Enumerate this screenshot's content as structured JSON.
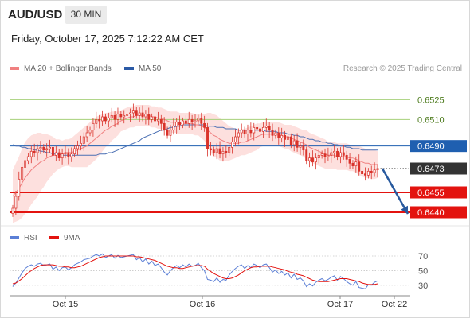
{
  "header": {
    "symbol": "AUD/USD",
    "timeframe": "30 MIN",
    "datetime": "Friday, October 17, 2025 7:12:22 AM CET"
  },
  "legend": {
    "ma20_label": "MA 20 + Bollinger Bands",
    "ma50_label": "MA 50",
    "rsi_label": "RSI",
    "ma9_label": "9MA",
    "copyright": "Research © 2025 Trading Central"
  },
  "colors": {
    "candle": "#d9322a",
    "ma20": "#f08080",
    "band": "#fcd8d6",
    "ma50": "#4a6fb3",
    "resistance": "#a6d07a",
    "support": "#e3130f",
    "pivot": "#1f5fb0",
    "current": "#333333",
    "rsi": "#5b7fd6",
    "rsi_ma": "#e3130f",
    "arrow": "#27599e"
  },
  "chart_data": [
    {
      "type": "candlestick",
      "title": "AUD/USD",
      "x_tick_labels": [
        "Oct 15",
        "Oct 16",
        "Oct 17",
        "Oct 22"
      ],
      "ylim": [
        0.6437,
        0.6542
      ],
      "levels": [
        {
          "value": "0.6525",
          "kind": "resistance"
        },
        {
          "value": "0.6510",
          "kind": "resistance"
        },
        {
          "value": "0.6490",
          "kind": "pivot"
        },
        {
          "value": "0.6473",
          "kind": "current"
        },
        {
          "value": "0.6455",
          "kind": "support"
        },
        {
          "value": "0.6440",
          "kind": "support"
        }
      ],
      "series": [
        {
          "name": "MA 20 + Bollinger Bands",
          "style": "line"
        },
        {
          "name": "MA 50",
          "style": "line"
        }
      ],
      "close": [
        0.6443,
        0.6452,
        0.6465,
        0.6474,
        0.6479,
        0.6482,
        0.6486,
        0.6485,
        0.6488,
        0.6489,
        0.6487,
        0.6488,
        0.6489,
        0.6483,
        0.6485,
        0.6481,
        0.6484,
        0.6485,
        0.6482,
        0.6484,
        0.6488,
        0.649,
        0.6492,
        0.6497,
        0.65,
        0.6502,
        0.6507,
        0.651,
        0.6509,
        0.6512,
        0.6509,
        0.6511,
        0.6513,
        0.651,
        0.6514,
        0.6512,
        0.6513,
        0.6514,
        0.6515,
        0.6517,
        0.6513,
        0.6515,
        0.6512,
        0.6514,
        0.651,
        0.6512,
        0.6509,
        0.651,
        0.6507,
        0.6502,
        0.6498,
        0.6502,
        0.6505,
        0.6508,
        0.6506,
        0.6509,
        0.6507,
        0.651,
        0.6508,
        0.6509,
        0.6511,
        0.6507,
        0.6504,
        0.6488,
        0.6487,
        0.6485,
        0.6488,
        0.6484,
        0.6486,
        0.6485,
        0.6489,
        0.6493,
        0.6497,
        0.65,
        0.6502,
        0.6499,
        0.6502,
        0.65,
        0.6504,
        0.6503,
        0.6501,
        0.6504,
        0.6505,
        0.6502,
        0.6498,
        0.65,
        0.6496,
        0.6498,
        0.6495,
        0.6497,
        0.6491,
        0.6494,
        0.6489,
        0.649,
        0.6487,
        0.6479,
        0.6481,
        0.6478,
        0.6481,
        0.6483,
        0.6484,
        0.6482,
        0.6483,
        0.6485,
        0.6486,
        0.6482,
        0.6485,
        0.6483,
        0.648,
        0.6477,
        0.6475,
        0.6478,
        0.6471,
        0.6469,
        0.6468,
        0.6471,
        0.647,
        0.6472,
        0.6473
      ],
      "ma20": [
        0.6452,
        0.6455,
        0.6458,
        0.6462,
        0.6466,
        0.6469,
        0.6472,
        0.6474,
        0.6476,
        0.6478,
        0.6479,
        0.6481,
        0.6482,
        0.6483,
        0.6483,
        0.6484,
        0.6484,
        0.6485,
        0.6485,
        0.6485,
        0.6486,
        0.6487,
        0.6488,
        0.6489,
        0.649,
        0.6492,
        0.6494,
        0.6496,
        0.6498,
        0.65,
        0.6502,
        0.6503,
        0.6505,
        0.6506,
        0.6507,
        0.6509,
        0.651,
        0.6511,
        0.6512,
        0.6512,
        0.6513,
        0.6513,
        0.6513,
        0.6513,
        0.6513,
        0.6512,
        0.6512,
        0.6511,
        0.6511,
        0.651,
        0.6509,
        0.6508,
        0.6508,
        0.6508,
        0.6507,
        0.6507,
        0.6507,
        0.6507,
        0.6507,
        0.6506,
        0.6506,
        0.6505,
        0.6504,
        0.6502,
        0.65,
        0.6498,
        0.6497,
        0.6495,
        0.6494,
        0.6493,
        0.6492,
        0.6492,
        0.6492,
        0.6492,
        0.6493,
        0.6493,
        0.6494,
        0.6495,
        0.6496,
        0.6497,
        0.6498,
        0.6499,
        0.6499,
        0.6499,
        0.6499,
        0.6499,
        0.6499,
        0.6498,
        0.6497,
        0.6497,
        0.6496,
        0.6495,
        0.6494,
        0.6493,
        0.6492,
        0.6491,
        0.6489,
        0.6488,
        0.6487,
        0.6486,
        0.6485,
        0.6484,
        0.6483,
        0.6483,
        0.6483,
        0.6482,
        0.6482,
        0.6482,
        0.6482,
        0.6481,
        0.6481,
        0.648,
        0.6479,
        0.6478,
        0.6477,
        0.6477,
        0.6476,
        0.6476,
        0.6476
      ],
      "bb_width": [
        0.002,
        0.0022,
        0.0024,
        0.0026,
        0.0027,
        0.0027,
        0.0026,
        0.0025,
        0.0024,
        0.0022,
        0.002,
        0.0018,
        0.0016,
        0.0014,
        0.0012,
        0.0011,
        0.001,
        0.001,
        0.001,
        0.0011,
        0.0012,
        0.0013,
        0.0014,
        0.0015,
        0.0016,
        0.0016,
        0.0016,
        0.0016,
        0.0015,
        0.0014,
        0.0013,
        0.0012,
        0.0011,
        0.001,
        0.0009,
        0.0008,
        0.0008,
        0.0008,
        0.0008,
        0.0008,
        0.0008,
        0.0008,
        0.0008,
        0.0008,
        0.0008,
        0.0008,
        0.0008,
        0.0008,
        0.0008,
        0.0008,
        0.0008,
        0.0008,
        0.0008,
        0.0008,
        0.0008,
        0.0008,
        0.0008,
        0.0008,
        0.0008,
        0.0008,
        0.0008,
        0.0009,
        0.001,
        0.0013,
        0.0015,
        0.0016,
        0.0016,
        0.0016,
        0.0015,
        0.0014,
        0.0013,
        0.0012,
        0.0011,
        0.001,
        0.001,
        0.001,
        0.001,
        0.001,
        0.001,
        0.001,
        0.0009,
        0.0009,
        0.0009,
        0.0009,
        0.0009,
        0.0009,
        0.0009,
        0.0009,
        0.0009,
        0.0009,
        0.001,
        0.001,
        0.001,
        0.001,
        0.001,
        0.0011,
        0.0011,
        0.0011,
        0.0011,
        0.0011,
        0.0011,
        0.0011,
        0.001,
        0.001,
        0.001,
        0.001,
        0.001,
        0.001,
        0.001,
        0.001,
        0.001,
        0.001,
        0.0011,
        0.0011,
        0.0011,
        0.0011,
        0.0011,
        0.0011,
        0.001
      ],
      "ma50": [
        0.6491,
        0.649,
        0.649,
        0.6489,
        0.6489,
        0.6488,
        0.6488,
        0.6487,
        0.6487,
        0.6486,
        0.6486,
        0.6485,
        0.6485,
        0.6484,
        0.6484,
        0.6484,
        0.6483,
        0.6483,
        0.6483,
        0.6483,
        0.6483,
        0.6483,
        0.6483,
        0.6483,
        0.6483,
        0.6483,
        0.6483,
        0.6483,
        0.6484,
        0.6484,
        0.6484,
        0.6485,
        0.6485,
        0.6486,
        0.6487,
        0.6488,
        0.6489,
        0.649,
        0.6491,
        0.6492,
        0.6493,
        0.6494,
        0.6496,
        0.6497,
        0.6498,
        0.6499,
        0.65,
        0.6501,
        0.6502,
        0.6502,
        0.6503,
        0.6504,
        0.6504,
        0.6505,
        0.6505,
        0.6506,
        0.6506,
        0.6506,
        0.6506,
        0.6506,
        0.6506,
        0.6506,
        0.6506,
        0.6505,
        0.6505,
        0.6505,
        0.6504,
        0.6504,
        0.6504,
        0.6503,
        0.6503,
        0.6503,
        0.6503,
        0.6502,
        0.6502,
        0.6502,
        0.6502,
        0.6502,
        0.6502,
        0.6502,
        0.6502,
        0.6502,
        0.6501,
        0.6501,
        0.6501,
        0.6501,
        0.65,
        0.65,
        0.65,
        0.6499,
        0.6499,
        0.6498,
        0.6498,
        0.6497,
        0.6497,
        0.6496,
        0.6495,
        0.6495,
        0.6494,
        0.6494,
        0.6493,
        0.6493,
        0.6492,
        0.6492,
        0.6491,
        0.6491,
        0.649,
        0.649,
        0.6489,
        0.6489,
        0.6488,
        0.6488,
        0.6488,
        0.6487,
        0.6487,
        0.6487,
        0.6487,
        0.6487,
        0.6487
      ],
      "projection": {
        "from": 0.6473,
        "to": 0.644
      }
    },
    {
      "type": "line",
      "title": "RSI",
      "y_tick_labels": [
        "70",
        "50",
        "30"
      ],
      "ylim": [
        20,
        82
      ],
      "series": [
        {
          "name": "RSI",
          "values": [
            28,
            33,
            40,
            47,
            53,
            56,
            58,
            56,
            59,
            60,
            57,
            58,
            59,
            52,
            55,
            50,
            54,
            55,
            51,
            54,
            58,
            60,
            62,
            65,
            66,
            67,
            70,
            72,
            70,
            73,
            68,
            70,
            72,
            67,
            71,
            68,
            69,
            70,
            71,
            72,
            65,
            68,
            62,
            66,
            59,
            63,
            57,
            59,
            54,
            48,
            44,
            50,
            54,
            57,
            54,
            58,
            55,
            59,
            56,
            57,
            60,
            54,
            50,
            38,
            37,
            35,
            40,
            34,
            38,
            37,
            44,
            49,
            53,
            56,
            58,
            53,
            57,
            54,
            59,
            57,
            54,
            58,
            59,
            54,
            48,
            51,
            46,
            49,
            44,
            47,
            40,
            45,
            38,
            40,
            36,
            28,
            32,
            29,
            34,
            37,
            39,
            36,
            38,
            41,
            43,
            37,
            42,
            39,
            35,
            32,
            30,
            35,
            27,
            26,
            25,
            31,
            30,
            34,
            36
          ]
        },
        {
          "name": "9MA",
          "values": [
            32,
            33,
            36,
            39,
            43,
            47,
            50,
            53,
            55,
            57,
            58,
            58,
            58,
            58,
            57,
            56,
            56,
            55,
            55,
            54,
            54,
            55,
            56,
            58,
            60,
            62,
            64,
            66,
            68,
            69,
            70,
            70,
            70,
            70,
            70,
            70,
            70,
            70,
            70,
            70,
            69,
            69,
            68,
            67,
            66,
            65,
            64,
            62,
            60,
            58,
            56,
            55,
            54,
            54,
            53,
            53,
            54,
            55,
            56,
            57,
            57,
            57,
            56,
            52,
            49,
            46,
            44,
            42,
            40,
            39,
            39,
            40,
            42,
            44,
            47,
            50,
            52,
            54,
            55,
            55,
            56,
            56,
            56,
            56,
            55,
            54,
            53,
            52,
            51,
            49,
            48,
            47,
            45,
            44,
            43,
            41,
            39,
            37,
            36,
            35,
            35,
            35,
            35,
            36,
            37,
            38,
            39,
            39,
            39,
            38,
            37,
            36,
            35,
            33,
            32,
            31,
            31,
            31,
            32
          ]
        }
      ]
    }
  ]
}
